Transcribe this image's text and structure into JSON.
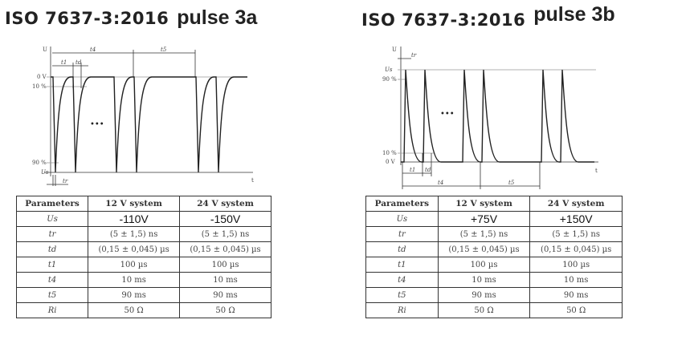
{
  "left": {
    "title_iso": "ISO 7637-3:2016",
    "title_pulse": "pulse 3a",
    "diagram": {
      "u": "U",
      "t": "t",
      "zero": "0 V",
      "p10": "10 %",
      "p90": "90 %",
      "us": "Us",
      "t4": "t4",
      "t5": "t5",
      "t1": "t1",
      "td": "td",
      "tr": "tr",
      "dots": "•••"
    },
    "table": {
      "headers": [
        "Parameters",
        "12 V system",
        "24 V system"
      ],
      "rows": [
        [
          "Us",
          "-110V",
          "-150V"
        ],
        [
          "tr",
          "(5 ± 1,5) ns",
          "(5 ± 1,5) ns"
        ],
        [
          "td",
          "(0,15 ± 0,045) µs",
          "(0,15 ± 0,045) µs"
        ],
        [
          "t1",
          "100 µs",
          "100 µs"
        ],
        [
          "t4",
          "10 ms",
          "10 ms"
        ],
        [
          "t5",
          "90 ms",
          "90 ms"
        ],
        [
          "Ri",
          "50 Ω",
          "50 Ω"
        ]
      ]
    }
  },
  "right": {
    "title_iso": "ISO 7637-3:2016",
    "title_pulse": "pulse 3b",
    "diagram": {
      "u": "U",
      "t": "t",
      "zero": "0 V",
      "p10": "10 %",
      "p90": "90 %",
      "us": "Us",
      "t4": "t4",
      "t5": "t5",
      "t1": "t1",
      "td": "td",
      "tr": "tr",
      "dots": "•••"
    },
    "table": {
      "headers": [
        "Parameters",
        "12 V system",
        "24 V system"
      ],
      "rows": [
        [
          "Us",
          "+75V",
          "+150V"
        ],
        [
          "tr",
          "(5 ± 1,5) ns",
          "(5 ± 1,5) ns"
        ],
        [
          "td",
          "(0,15 ± 0,045) µs",
          "(0,15 ± 0,045) µs"
        ],
        [
          "t1",
          "100 µs",
          "100 µs"
        ],
        [
          "t4",
          "10 ms",
          "10 ms"
        ],
        [
          "t5",
          "90 ms",
          "90 ms"
        ],
        [
          "Ri",
          "50 Ω",
          "50 Ω"
        ]
      ]
    }
  }
}
